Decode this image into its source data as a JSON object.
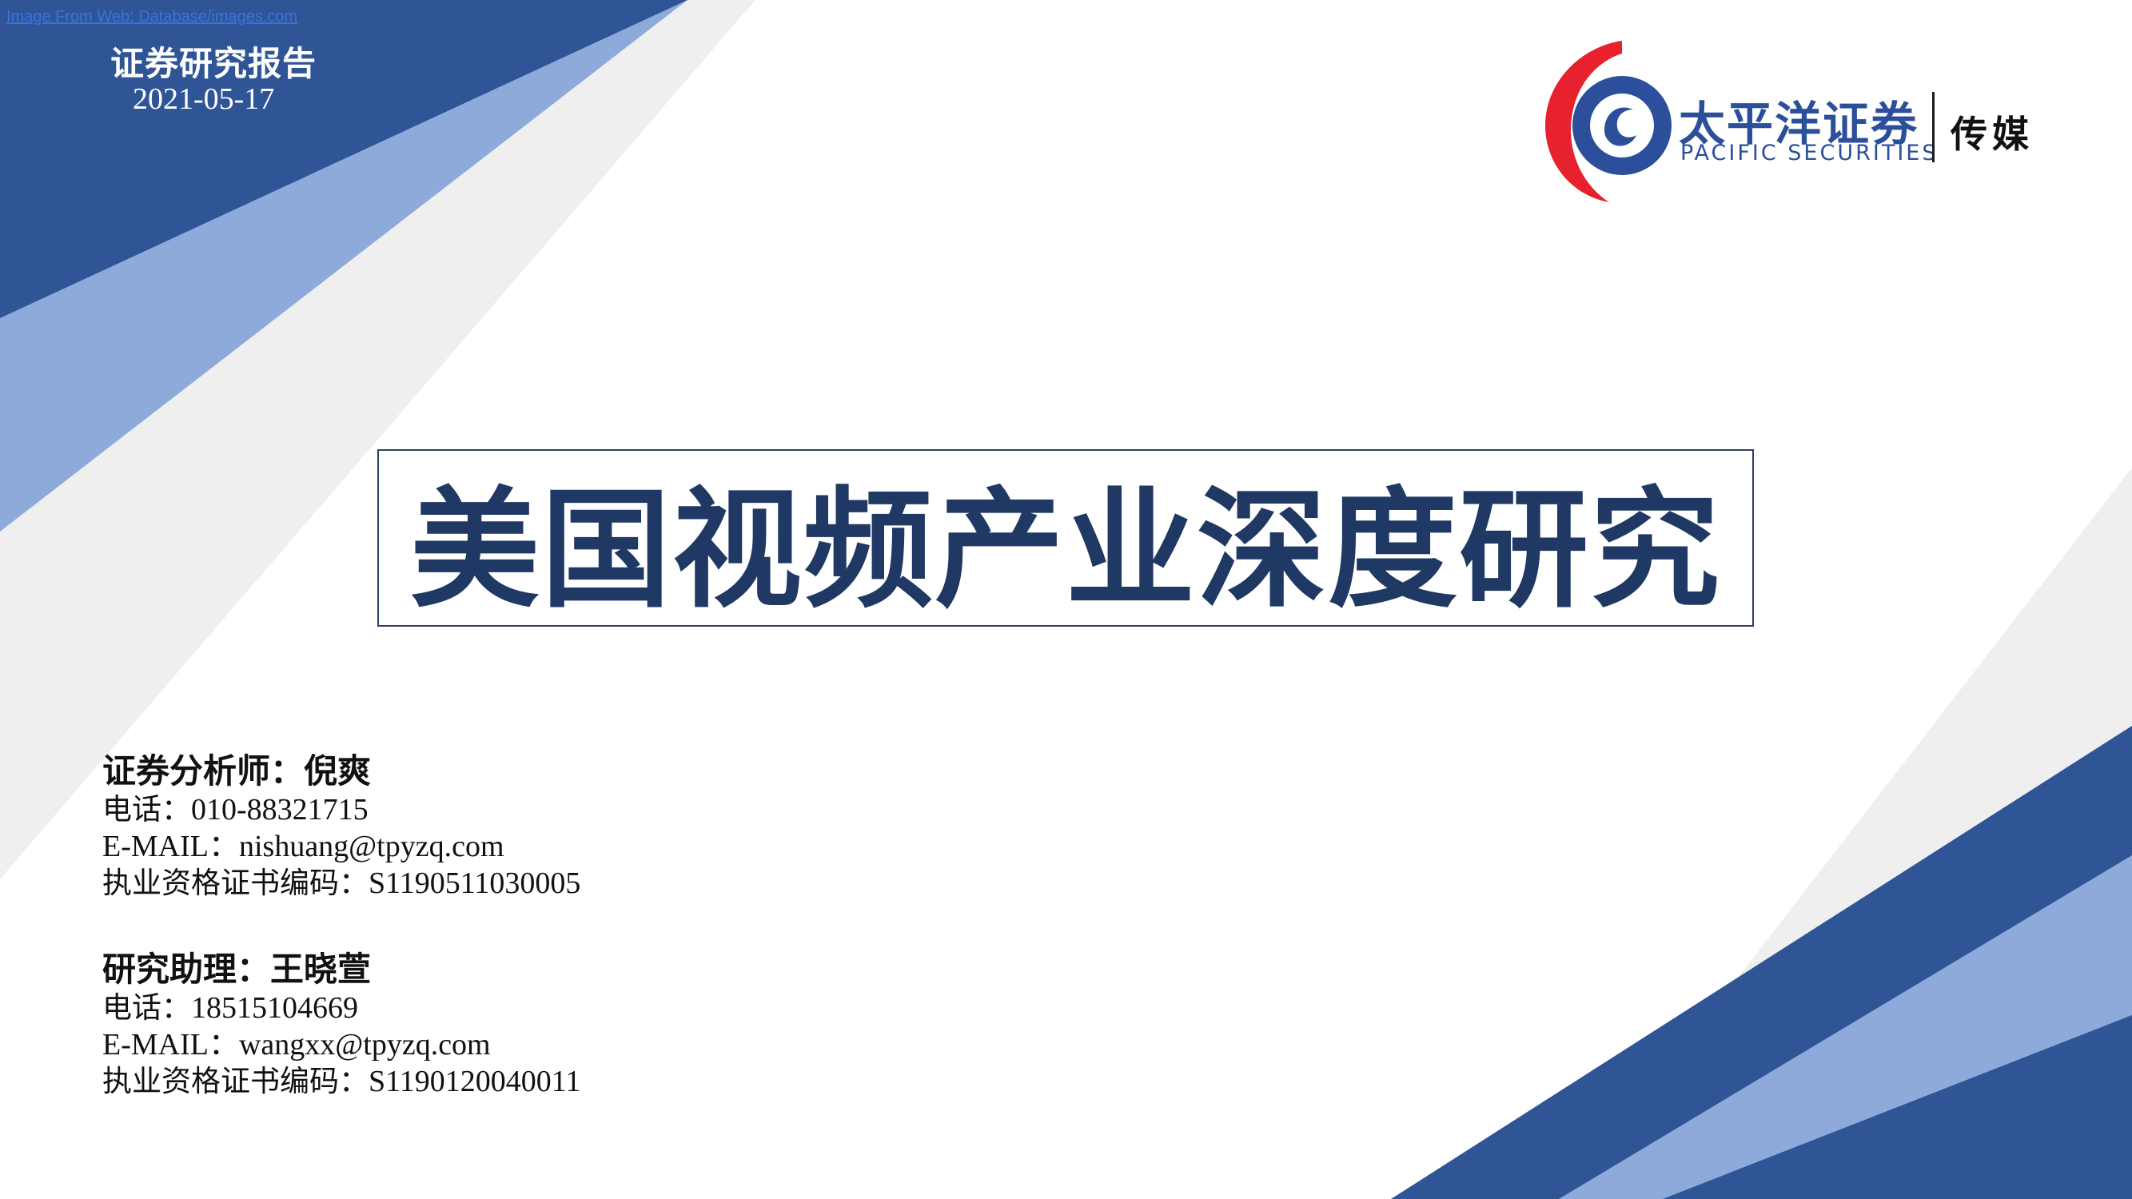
{
  "watermark": "Image From Web: Database/images.com",
  "header": {
    "report_type": "证券研究报告",
    "date": "2021-05-17"
  },
  "brand": {
    "name_cn": "太平洋证券",
    "name_en": "PACIFIC SECURITIES",
    "industry": "传媒",
    "colors": {
      "red": "#e8212e",
      "blue": "#2c4f9b"
    }
  },
  "title": "美国视频产业深度研究",
  "contacts": [
    {
      "role": "证券分析师：",
      "name": "倪爽",
      "phone_label": "电话：",
      "phone": "010-88321715",
      "email_label": "E-MAIL：",
      "email": "nishuang@tpyzq.com",
      "cert_label": "执业资格证书编码：",
      "cert": "S1190511030005"
    },
    {
      "role": "研究助理：",
      "name": "王晓萱",
      "phone_label": "电话：",
      "phone": "18515104669",
      "email_label": "E-MAIL：",
      "email": "wangxx@tpyzq.com",
      "cert_label": "执业资格证书编码：",
      "cert": "S1190120040011"
    }
  ],
  "theme_colors": {
    "dark_blue": "#2f5597",
    "light_blue": "#8eaadb",
    "light_gray": "#efefef",
    "title_navy": "#1f3864"
  }
}
